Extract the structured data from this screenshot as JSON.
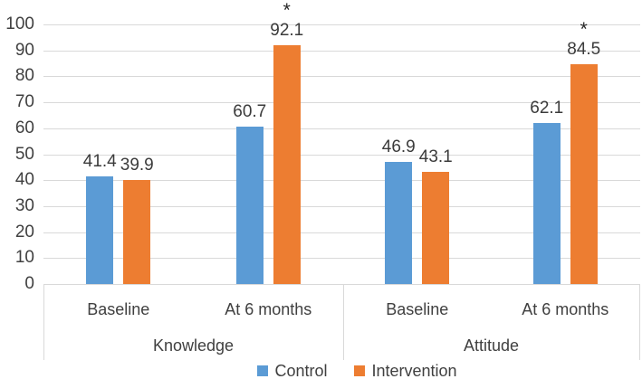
{
  "chart_data": {
    "type": "bar",
    "title": "",
    "xlabel": "",
    "ylabel": "",
    "ylim": [
      0,
      100
    ],
    "yticks": [
      0,
      10,
      20,
      30,
      40,
      50,
      60,
      70,
      80,
      90,
      100
    ],
    "grid": true,
    "legend_position": "bottom",
    "group_labels": [
      "Knowledge",
      "Attitude"
    ],
    "categories": [
      "Baseline",
      "At 6 months",
      "Baseline",
      "At 6 months"
    ],
    "category_group": [
      0,
      0,
      1,
      1
    ],
    "series": [
      {
        "name": "Control",
        "color": "#5B9BD5",
        "values": [
          41.4,
          60.7,
          46.9,
          62.1
        ],
        "significance": [
          "",
          "",
          "",
          ""
        ]
      },
      {
        "name": "Intervention",
        "color": "#ED7D31",
        "values": [
          39.9,
          92.1,
          43.1,
          84.5
        ],
        "significance": [
          "",
          "*",
          "",
          "*"
        ]
      }
    ]
  },
  "colors": {
    "gridline": "#d9d9d9",
    "axis_text": "#404040",
    "data_label_text": "#3b3b3b",
    "significance_marker": "#262626"
  }
}
